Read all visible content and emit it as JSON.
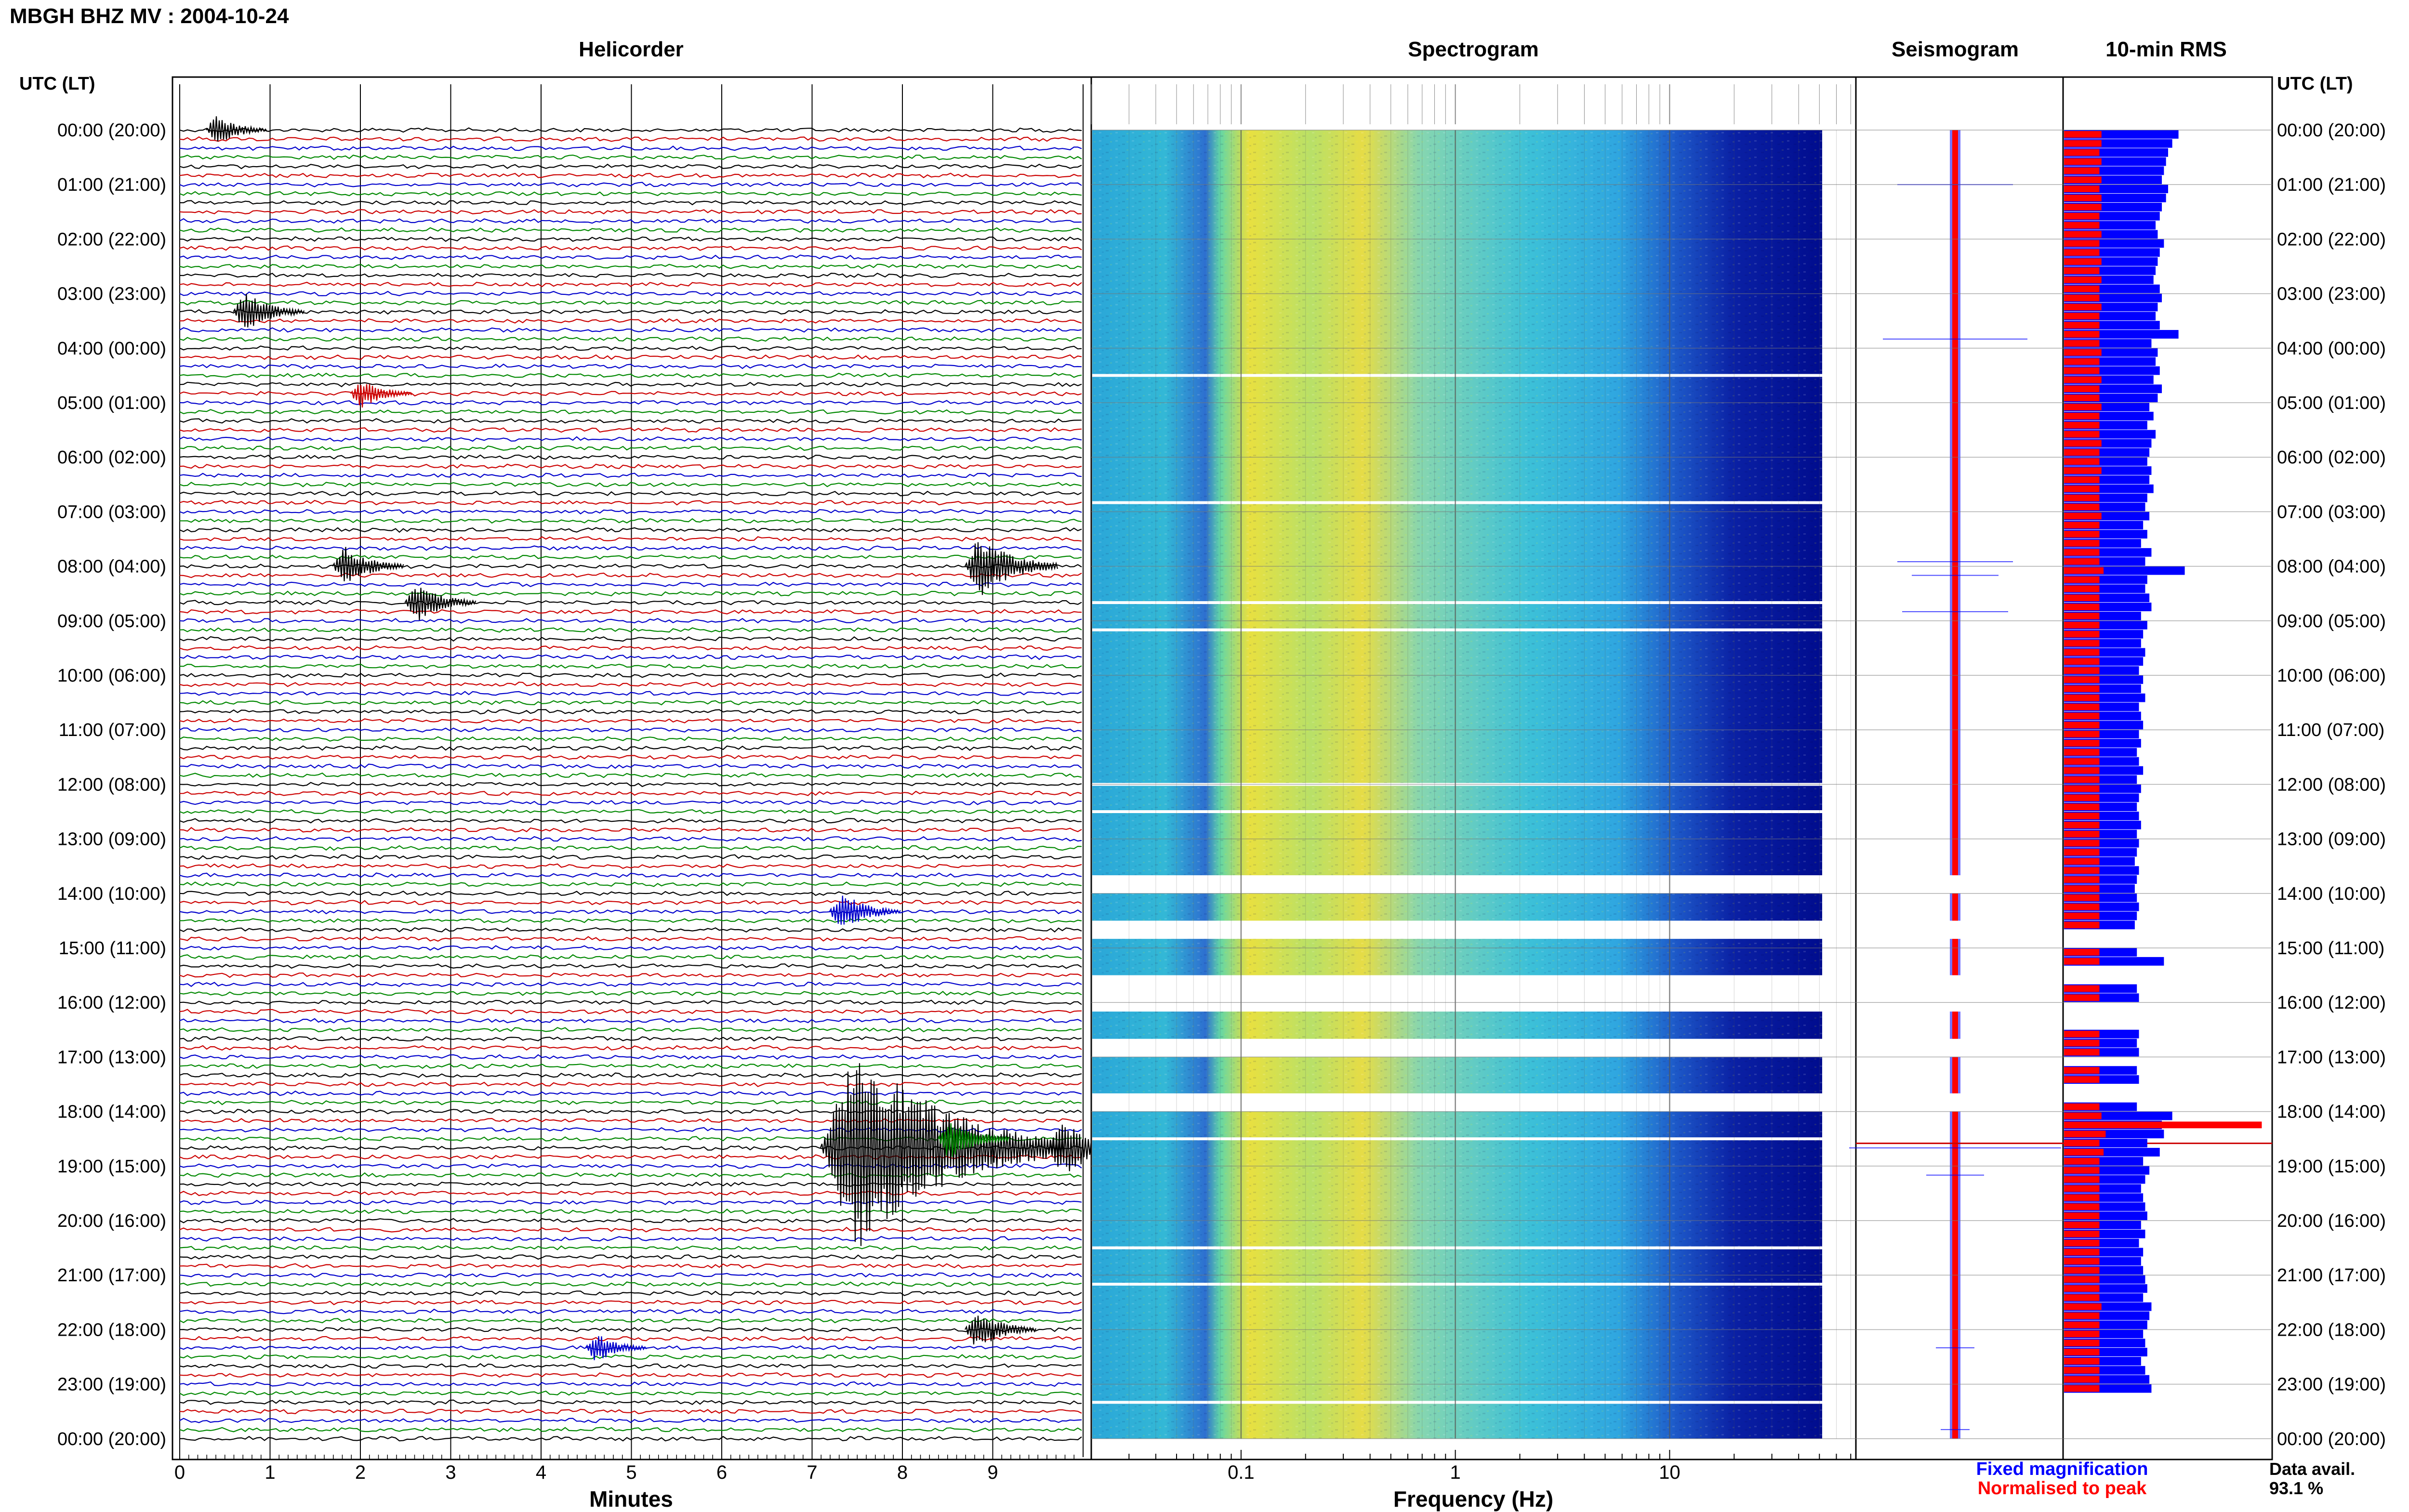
{
  "header": {
    "station_title": "MBGH BHZ MV : 2004-10-24",
    "time_label_left": "UTC (LT)",
    "time_label_right": "UTC (LT)"
  },
  "panels": {
    "helicorder": "Helicorder",
    "spectrogram": "Spectrogram",
    "seismogram": "Seismogram",
    "rms": "10-min RMS"
  },
  "axes": {
    "minutes_label": "Minutes",
    "minutes_ticks": [
      "0",
      "1",
      "2",
      "3",
      "4",
      "5",
      "6",
      "7",
      "8",
      "9"
    ],
    "frequency_label": "Frequency (Hz)",
    "frequency_ticks": [
      "0.1",
      "1",
      "10"
    ]
  },
  "legend": {
    "fixed": "Fixed magnification",
    "normalised": "Normalised to peak",
    "fixed_color": "#0000ff",
    "normalised_color": "#ff0000"
  },
  "data_availability": {
    "label": "Data avail.",
    "value": "93.1 %"
  },
  "time_labels": [
    "00:00 (20:00)",
    "01:00 (21:00)",
    "02:00 (22:00)",
    "03:00 (23:00)",
    "04:00 (00:00)",
    "05:00 (01:00)",
    "06:00 (02:00)",
    "07:00 (03:00)",
    "08:00 (04:00)",
    "09:00 (05:00)",
    "10:00 (06:00)",
    "11:00 (07:00)",
    "12:00 (08:00)",
    "13:00 (09:00)",
    "14:00 (10:00)",
    "15:00 (11:00)",
    "16:00 (12:00)",
    "17:00 (13:00)",
    "18:00 (14:00)",
    "19:00 (15:00)",
    "20:00 (16:00)",
    "21:00 (17:00)",
    "22:00 (18:00)",
    "23:00 (19:00)",
    "00:00 (20:00)"
  ],
  "trace_colors": [
    "#000000",
    "#cc0000",
    "#0000cc",
    "#008800"
  ],
  "chart_data": [
    {
      "type": "line",
      "name": "helicorder",
      "xlabel": "Minutes",
      "xlim": [
        0,
        10
      ],
      "rows_per_hour": 6,
      "rows": 145,
      "events": [
        {
          "time": "18:40",
          "minute": 7.2,
          "relative_amplitude": 10
        },
        {
          "time": "18:30",
          "minute": 8.5,
          "relative_amplitude": 2
        },
        {
          "time": "18:40",
          "minute": 9.7,
          "relative_amplitude": 3
        },
        {
          "time": "08:00",
          "minute": 8.8,
          "relative_amplitude": 3
        },
        {
          "time": "14:20",
          "minute": 7.3,
          "relative_amplitude": 2
        },
        {
          "time": "03:20",
          "minute": 0.7,
          "relative_amplitude": 2
        },
        {
          "time": "08:00",
          "minute": 1.8,
          "relative_amplitude": 2
        },
        {
          "time": "08:40",
          "minute": 2.6,
          "relative_amplitude": 2
        },
        {
          "time": "04:50",
          "minute": 2.0,
          "relative_amplitude": 1.5
        },
        {
          "time": "22:00",
          "minute": 8.8,
          "relative_amplitude": 2
        },
        {
          "time": "22:20",
          "minute": 4.6,
          "relative_amplitude": 1.5
        },
        {
          "time": "00:00",
          "minute": 0.4,
          "relative_amplitude": 1.5
        }
      ]
    },
    {
      "type": "heatmap",
      "name": "spectrogram",
      "xlabel": "Frequency (Hz)",
      "x_scale": "log",
      "xlim": [
        0.02,
        40
      ],
      "gaps_utc": [
        "04:30",
        "06:50",
        "08:40",
        "09:10",
        "12:00",
        "12:30",
        "13:40-14:00",
        "14:30-14:50",
        "15:30-16:10",
        "16:40-17:00",
        "17:40-18:00",
        "18:30",
        "20:30",
        "21:10",
        "23:20"
      ]
    },
    {
      "type": "line",
      "name": "seismogram",
      "series": [
        {
          "name": "Fixed magnification",
          "color": "#0000ff"
        },
        {
          "name": "Normalised to peak",
          "color": "#ff0000"
        }
      ]
    },
    {
      "type": "bar",
      "name": "10-min RMS",
      "orientation": "horizontal",
      "bars_per_hour": 6,
      "series": [
        {
          "name": "Normalised to peak",
          "color": "#ff0000"
        },
        {
          "name": "Fixed magnification",
          "color": "#0000ff"
        }
      ],
      "fixed_values": [
        0.55,
        0.52,
        0.5,
        0.49,
        0.48,
        0.47,
        0.5,
        0.49,
        0.47,
        0.46,
        0.44,
        0.45,
        0.48,
        0.46,
        0.45,
        0.44,
        0.43,
        0.46,
        0.47,
        0.45,
        0.44,
        0.46,
        0.55,
        0.42,
        0.45,
        0.44,
        0.46,
        0.43,
        0.47,
        0.45,
        0.41,
        0.43,
        0.4,
        0.44,
        0.42,
        0.41,
        0.4,
        0.42,
        0.41,
        0.43,
        0.4,
        0.39,
        0.41,
        0.38,
        0.4,
        0.37,
        0.42,
        0.39,
        0.58,
        0.4,
        0.39,
        0.41,
        0.42,
        0.37,
        0.4,
        0.38,
        0.37,
        0.39,
        0.38,
        0.36,
        0.38,
        0.37,
        0.39,
        0.36,
        0.37,
        0.38,
        0.36,
        0.37,
        0.35,
        0.36,
        0.38,
        0.35,
        0.37,
        0.36,
        0.35,
        0.36,
        0.37,
        0.35,
        0.36,
        0.35,
        0.34,
        0.36,
        0.35,
        0.34,
        0.35,
        0.36,
        0.35,
        0.34,
        0,
        0,
        0.35,
        0.48,
        0,
        0,
        0.35,
        0.36,
        0,
        0,
        0,
        0.36,
        0.35,
        0.36,
        0.0,
        0.35,
        0.36,
        0,
        0,
        0.35,
        0.52,
        0.47,
        0.48,
        0.4,
        0.46,
        0.38,
        0.41,
        0.39,
        0.37,
        0.38,
        0.39,
        0.4,
        0.37,
        0.39,
        0.36,
        0.38,
        0.37,
        0.38,
        0.39,
        0.4,
        0.38,
        0.42,
        0.41,
        0.4,
        0.38,
        0.39,
        0.4,
        0.37,
        0.39,
        0.41,
        0.42
      ],
      "normalised_values": [
        0.18,
        0.18,
        0.17,
        0.18,
        0.17,
        0.18,
        0.17,
        0.18,
        0.18,
        0.17,
        0.17,
        0.18,
        0.17,
        0.17,
        0.18,
        0.17,
        0.18,
        0.17,
        0.17,
        0.18,
        0.17,
        0.17,
        0.17,
        0.17,
        0.18,
        0.17,
        0.17,
        0.18,
        0.17,
        0.17,
        0.18,
        0.17,
        0.17,
        0.17,
        0.18,
        0.17,
        0.17,
        0.18,
        0.17,
        0.17,
        0.17,
        0.17,
        0.18,
        0.17,
        0.17,
        0.17,
        0.17,
        0.17,
        0.19,
        0.17,
        0.17,
        0.17,
        0.17,
        0.17,
        0.17,
        0.17,
        0.17,
        0.17,
        0.17,
        0.17,
        0.17,
        0.17,
        0.17,
        0.17,
        0.17,
        0.17,
        0.17,
        0.17,
        0.17,
        0.17,
        0.17,
        0.17,
        0.17,
        0.17,
        0.17,
        0.17,
        0.17,
        0.17,
        0.17,
        0.17,
        0.17,
        0.17,
        0.17,
        0.17,
        0.17,
        0.17,
        0.17,
        0.17,
        0,
        0,
        0.17,
        0.17,
        0,
        0,
        0.17,
        0.17,
        0,
        0,
        0,
        0.17,
        0.17,
        0.17,
        0,
        0.17,
        0.17,
        0,
        0,
        0.17,
        0.18,
        0.95,
        0.2,
        0.17,
        0.19,
        0.17,
        0.17,
        0.17,
        0.17,
        0.17,
        0.17,
        0.17,
        0.17,
        0.17,
        0.17,
        0.17,
        0.17,
        0.17,
        0.17,
        0.17,
        0.17,
        0.18,
        0.17,
        0.17,
        0.17,
        0.17,
        0.17,
        0.17,
        0.17,
        0.17,
        0.17
      ]
    }
  ]
}
